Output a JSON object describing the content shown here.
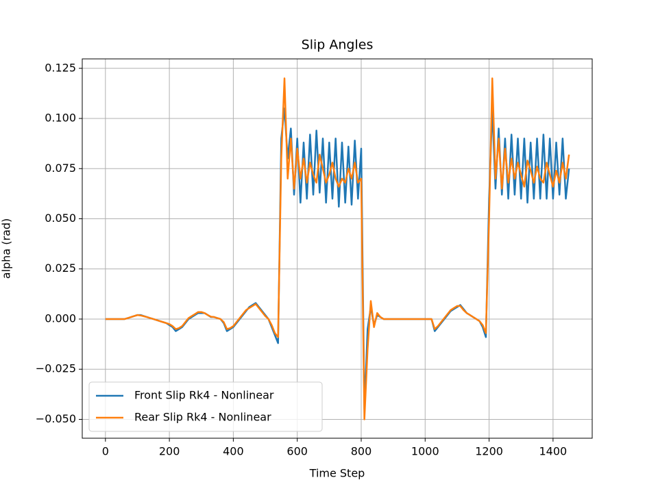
{
  "chart_data": {
    "type": "line",
    "title": "Slip Angles",
    "xlabel": "Time Step",
    "ylabel": "alpha (rad)",
    "x": [
      0,
      10,
      20,
      30,
      40,
      50,
      60,
      70,
      80,
      90,
      100,
      110,
      120,
      130,
      140,
      150,
      160,
      170,
      180,
      190,
      200,
      210,
      220,
      230,
      240,
      250,
      260,
      270,
      280,
      290,
      300,
      310,
      320,
      330,
      340,
      350,
      360,
      370,
      380,
      390,
      400,
      410,
      420,
      430,
      440,
      450,
      460,
      470,
      480,
      490,
      500,
      510,
      520,
      530,
      540,
      550,
      560,
      570,
      580,
      590,
      600,
      610,
      620,
      630,
      640,
      650,
      660,
      670,
      680,
      690,
      700,
      710,
      720,
      730,
      740,
      750,
      760,
      770,
      780,
      790,
      800,
      810,
      820,
      830,
      840,
      850,
      860,
      870,
      880,
      890,
      900,
      910,
      920,
      930,
      940,
      950,
      960,
      970,
      980,
      990,
      1000,
      1010,
      1020,
      1030,
      1040,
      1050,
      1060,
      1070,
      1080,
      1090,
      1100,
      1110,
      1120,
      1130,
      1140,
      1150,
      1160,
      1170,
      1180,
      1190,
      1200,
      1210,
      1220,
      1230,
      1240,
      1250,
      1260,
      1270,
      1280,
      1290,
      1300,
      1310,
      1320,
      1330,
      1340,
      1350,
      1360,
      1370,
      1380,
      1390,
      1400,
      1410,
      1420,
      1430,
      1440,
      1450
    ],
    "series": [
      {
        "name": "Front Slip Rk4 - Nonlinear",
        "color": "#1f77b4",
        "values": [
          0,
          0,
          0,
          0,
          0,
          0,
          0,
          0.0005,
          0.001,
          0.0015,
          0.002,
          0.002,
          0.0015,
          0.001,
          0.0005,
          0,
          -0.0005,
          -0.001,
          -0.0015,
          -0.002,
          -0.003,
          -0.004,
          -0.006,
          -0.005,
          -0.004,
          -0.002,
          0,
          0.001,
          0.002,
          0.003,
          0.003,
          0.003,
          0.002,
          0.001,
          0.001,
          0.0005,
          0,
          -0.002,
          -0.006,
          -0.005,
          -0.004,
          -0.002,
          0,
          0.002,
          0.004,
          0.006,
          0.007,
          0.008,
          0.006,
          0.004,
          0.002,
          0,
          -0.004,
          -0.008,
          -0.012,
          0.09,
          0.105,
          0.08,
          0.095,
          0.062,
          0.09,
          0.058,
          0.088,
          0.06,
          0.092,
          0.062,
          0.094,
          0.063,
          0.09,
          0.058,
          0.088,
          0.06,
          0.09,
          0.056,
          0.088,
          0.058,
          0.086,
          0.057,
          0.089,
          0.06,
          0.085,
          -0.045,
          -0.005,
          0.006,
          -0.003,
          0.002,
          0.001,
          0,
          0,
          0,
          0,
          0,
          0,
          0,
          0,
          0,
          0,
          0,
          0,
          0,
          0,
          0,
          0,
          -0.006,
          -0.004,
          -0.002,
          0,
          0.002,
          0.004,
          0.005,
          0.006,
          0.007,
          0.005,
          0.003,
          0.002,
          0.001,
          0,
          -0.001,
          -0.004,
          -0.009,
          0.06,
          0.105,
          0.065,
          0.095,
          0.062,
          0.09,
          0.06,
          0.092,
          0.062,
          0.09,
          0.06,
          0.09,
          0.058,
          0.088,
          0.06,
          0.09,
          0.06,
          0.092,
          0.06,
          0.09,
          0.06,
          0.088,
          0.062,
          0.09,
          0.06,
          0.075
        ]
      },
      {
        "name": "Rear Slip Rk4 - Nonlinear",
        "color": "#ff7f0e",
        "values": [
          0,
          0,
          0,
          0,
          0,
          0,
          0,
          0.0005,
          0.001,
          0.0015,
          0.002,
          0.0018,
          0.0014,
          0.001,
          0.0005,
          0,
          -0.0005,
          -0.001,
          -0.0015,
          -0.002,
          -0.0025,
          -0.0035,
          -0.005,
          -0.0045,
          -0.0035,
          -0.0015,
          0.0005,
          0.0015,
          0.0025,
          0.0035,
          0.0035,
          0.003,
          0.002,
          0.0012,
          0.001,
          0.0005,
          0,
          -0.0015,
          -0.005,
          -0.0045,
          -0.0035,
          -0.0015,
          0.0005,
          0.0025,
          0.0045,
          0.0055,
          0.0065,
          0.0075,
          0.0055,
          0.0035,
          0.0015,
          0,
          -0.003,
          -0.007,
          -0.009,
          0.08,
          0.12,
          0.07,
          0.09,
          0.065,
          0.085,
          0.07,
          0.08,
          0.068,
          0.078,
          0.072,
          0.068,
          0.082,
          0.075,
          0.068,
          0.072,
          0.078,
          0.07,
          0.066,
          0.07,
          0.068,
          0.075,
          0.07,
          0.078,
          0.068,
          0.07,
          -0.05,
          -0.015,
          0.009,
          -0.004,
          0.003,
          0.001,
          0,
          0,
          0,
          0,
          0,
          0,
          0,
          0,
          0,
          0,
          0,
          0,
          0,
          0,
          0,
          0,
          -0.005,
          -0.0035,
          -0.0015,
          0.0005,
          0.0025,
          0.0045,
          0.0055,
          0.0065,
          0.0065,
          0.0045,
          0.003,
          0.002,
          0.001,
          0,
          -0.001,
          -0.003,
          -0.007,
          0.05,
          0.12,
          0.07,
          0.09,
          0.065,
          0.085,
          0.068,
          0.08,
          0.07,
          0.078,
          0.072,
          0.066,
          0.079,
          0.074,
          0.068,
          0.076,
          0.07,
          0.068,
          0.078,
          0.072,
          0.066,
          0.074,
          0.068,
          0.078,
          0.07,
          0.082
        ]
      }
    ],
    "xlim": [
      -72.5,
      1522.5
    ],
    "xticks": [
      0,
      200,
      400,
      600,
      800,
      1000,
      1200,
      1400
    ],
    "ylim": [
      -0.0594,
      0.1297
    ],
    "yticks": [
      {
        "value": -0.05,
        "label": "−0.050"
      },
      {
        "value": -0.025,
        "label": "−0.025"
      },
      {
        "value": 0,
        "label": "0.000"
      },
      {
        "value": 0.025,
        "label": "0.025"
      },
      {
        "value": 0.05,
        "label": "0.050"
      },
      {
        "value": 0.075,
        "label": "0.075"
      },
      {
        "value": 0.1,
        "label": "0.100"
      },
      {
        "value": 0.125,
        "label": "0.125"
      }
    ],
    "grid": true,
    "legend": "lower left"
  }
}
